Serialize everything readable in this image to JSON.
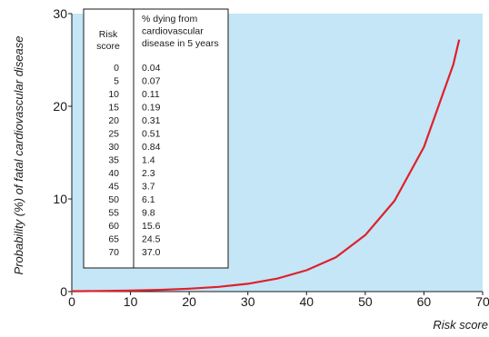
{
  "chart_data": {
    "type": "line",
    "xlabel": "Risk score",
    "ylabel": "Probability (%) of fatal cardiovascular disease",
    "xlim": [
      0,
      70
    ],
    "ylim": [
      0,
      30
    ],
    "x_ticks": [
      "0",
      "10",
      "20",
      "30",
      "40",
      "50",
      "60",
      "70"
    ],
    "y_ticks": [
      "0",
      "10",
      "20",
      "30"
    ],
    "grid": false,
    "background_color": "#c4e6f7",
    "line_color": "#e0202a",
    "series": [
      {
        "x": [
          0,
          5,
          10,
          15,
          20,
          25,
          30,
          35,
          40,
          45,
          50,
          55,
          60,
          65,
          66
        ],
        "y": [
          0.04,
          0.07,
          0.11,
          0.19,
          0.31,
          0.51,
          0.84,
          1.4,
          2.3,
          3.7,
          6.1,
          9.8,
          15.6,
          24.5,
          27.2
        ]
      }
    ],
    "table": {
      "headers": {
        "risk_score": [
          "Risk",
          "score"
        ],
        "percent_dying": [
          "% dying from",
          "cardiovascular",
          "disease in 5 years"
        ]
      },
      "rows": [
        {
          "score": "0",
          "percent": "0.04"
        },
        {
          "score": "5",
          "percent": "0.07"
        },
        {
          "score": "10",
          "percent": "0.11"
        },
        {
          "score": "15",
          "percent": "0.19"
        },
        {
          "score": "20",
          "percent": "0.31"
        },
        {
          "score": "25",
          "percent": "0.51"
        },
        {
          "score": "30",
          "percent": "0.84"
        },
        {
          "score": "35",
          "percent": "1.4"
        },
        {
          "score": "40",
          "percent": "2.3"
        },
        {
          "score": "45",
          "percent": "3.7"
        },
        {
          "score": "50",
          "percent": "6.1"
        },
        {
          "score": "55",
          "percent": "9.8"
        },
        {
          "score": "60",
          "percent": "15.6"
        },
        {
          "score": "65",
          "percent": "24.5"
        },
        {
          "score": "70",
          "percent": "37.0"
        }
      ]
    }
  }
}
